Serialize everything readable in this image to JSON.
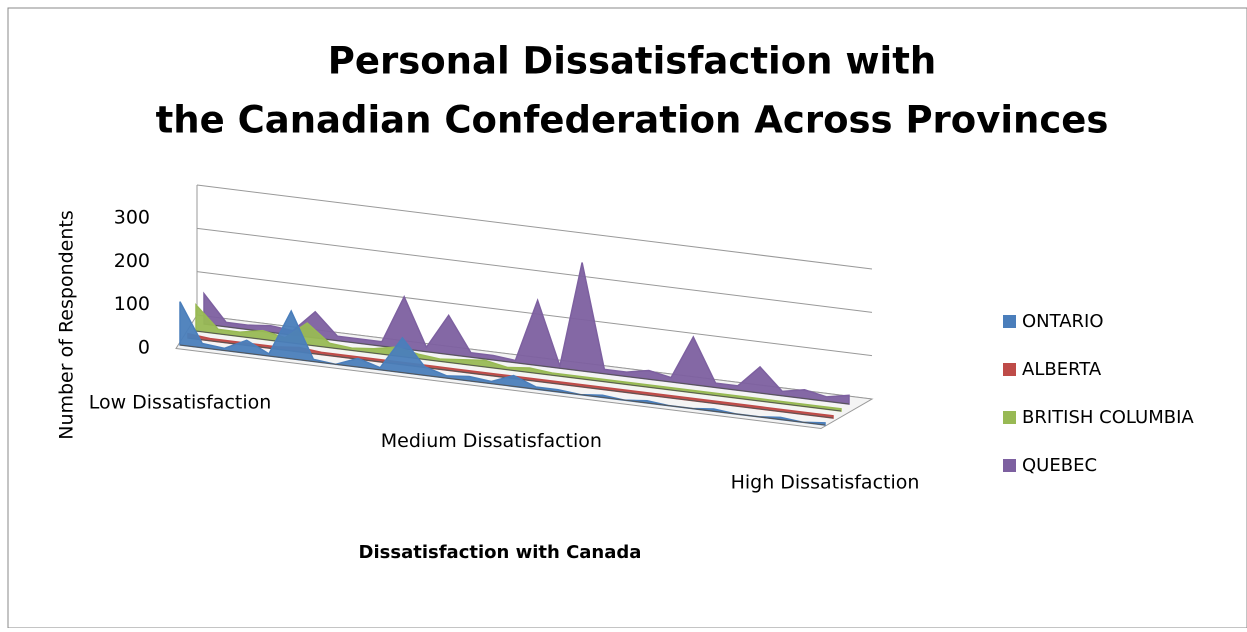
{
  "chart_data": {
    "type": "area3d",
    "title": [
      "Personal Dissatisfaction with",
      "the Canadian Confederation Across Provinces"
    ],
    "x_label": "Dissatisfaction with Canada",
    "y_label": "Number of Respondents",
    "categories": [
      "Low Dissatisfaction",
      null,
      null,
      null,
      null,
      null,
      null,
      null,
      null,
      null,
      null,
      null,
      null,
      null,
      "Medium Dissatisfaction",
      null,
      null,
      null,
      null,
      null,
      null,
      null,
      null,
      null,
      null,
      null,
      null,
      null,
      null,
      "High Dissatisfaction"
    ],
    "series": [
      {
        "name": "ONTARIO",
        "color": "#4a7ebb",
        "values": [
          100,
          10,
          5,
          30,
          5,
          110,
          5,
          0,
          20,
          5,
          80,
          20,
          5,
          10,
          5,
          25,
          5,
          5,
          0,
          5,
          0,
          5,
          0,
          0,
          5,
          0,
          0,
          5,
          0,
          5
        ]
      },
      {
        "name": "ALBERTA",
        "color": "#be4b48",
        "values": [
          10,
          5,
          5,
          5,
          5,
          10,
          5,
          5,
          5,
          5,
          5,
          5,
          5,
          5,
          5,
          5,
          5,
          5,
          5,
          5,
          5,
          5,
          5,
          5,
          5,
          5,
          5,
          5,
          5,
          5
        ]
      },
      {
        "name": "BRITISH COLUMBIA",
        "color": "#98b954",
        "values": [
          60,
          10,
          10,
          20,
          10,
          50,
          10,
          5,
          10,
          20,
          10,
          5,
          10,
          15,
          5,
          10,
          5,
          5,
          5,
          5,
          5,
          5,
          5,
          5,
          5,
          5,
          5,
          5,
          5,
          5
        ]
      },
      {
        "name": "QUEBEC",
        "color": "#7d60a0",
        "values": [
          70,
          10,
          10,
          15,
          10,
          60,
          10,
          10,
          10,
          120,
          10,
          90,
          10,
          10,
          5,
          150,
          5,
          250,
          10,
          10,
          20,
          10,
          110,
          10,
          10,
          60,
          10,
          20,
          10,
          20
        ]
      }
    ],
    "ylim": [
      0,
      300
    ],
    "yticks": [
      0,
      100,
      200,
      300
    ],
    "grid": true,
    "legend": "right"
  }
}
